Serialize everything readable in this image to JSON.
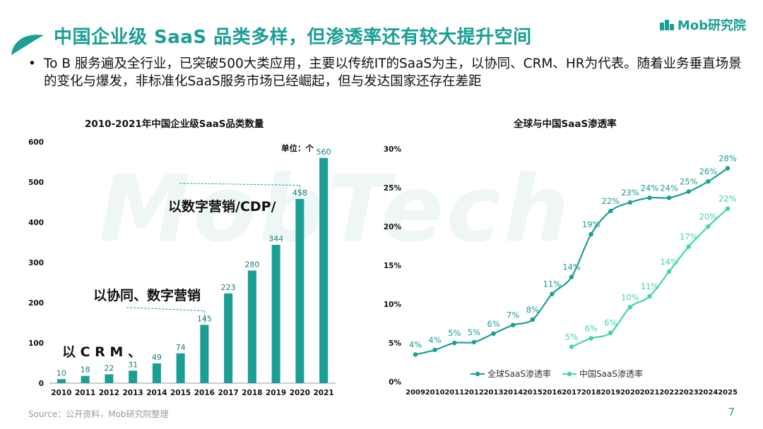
{
  "header": {
    "title": "中国企业级 SaaS 品类多样，但渗透率还有较大提升空间",
    "logo_text": "Mob研究院",
    "accent": "#1a9e95"
  },
  "bullet": {
    "dot": "•",
    "text": "To B 服务遍及全行业，已突破500大类应用，主要以传统IT的SaaS为主，以协同、CRM、HR为代表。随着业务垂直场景的变化与爆发，非标准化SaaS服务市场已经崛起，但与发达国家还存在差距"
  },
  "watermark": "MobTech",
  "footer": {
    "source": "Source：公开资料，Mob研究院整理",
    "page": "7"
  },
  "chart_data": [
    {
      "type": "bar",
      "title": "2010-2021年中国企业级SaaS品类数量",
      "unit_label": "单位：个",
      "categories": [
        "2010",
        "2011",
        "2012",
        "2013",
        "2014",
        "2015",
        "2016",
        "2017",
        "2018",
        "2019",
        "2020",
        "2021"
      ],
      "values": [
        10,
        18,
        22,
        31,
        49,
        74,
        145,
        223,
        280,
        344,
        458,
        560
      ],
      "ylim": [
        0,
        600
      ],
      "yticks": [
        0,
        100,
        200,
        300,
        400,
        500,
        600
      ],
      "color": "#1a9e95",
      "annotations": [
        "以 C R M 、",
        "以协同、数字营销",
        "以数字营销/CDP/"
      ],
      "grid": false
    },
    {
      "type": "line",
      "title": "全球与中国SaaS渗透率",
      "x": [
        "2009",
        "2010",
        "2011",
        "2012",
        "2013",
        "2014",
        "2015",
        "2016",
        "2017",
        "2018",
        "2019",
        "2020",
        "2021",
        "2022",
        "2023",
        "2024",
        "2025"
      ],
      "ylim": [
        0,
        30
      ],
      "yticks": [
        "0%",
        "5%",
        "10%",
        "15%",
        "20%",
        "25%",
        "30%"
      ],
      "legend_position": "bottom",
      "grid": false,
      "series": [
        {
          "name": "全球SaaS渗透率",
          "color": "#1a9e95",
          "x": [
            "2009",
            "2010",
            "2011",
            "2012",
            "2013",
            "2014",
            "2015",
            "2016",
            "2017",
            "2018",
            "2019",
            "2020",
            "2021",
            "2022",
            "2023",
            "2024",
            "2025"
          ],
          "values": [
            3.5,
            4.1,
            5.0,
            5.1,
            6.2,
            7.3,
            8.0,
            11.3,
            13.5,
            19.0,
            22.0,
            23.1,
            23.7,
            23.7,
            24.5,
            25.8,
            27.5
          ],
          "labels": [
            "4%",
            "4%",
            "5%",
            "5%",
            "6%",
            "7%",
            "8%",
            "11%",
            "14%",
            "19%",
            "22%",
            "23%",
            "24%",
            "24%",
            "25%",
            "26%",
            "28%"
          ]
        },
        {
          "name": "中国SaaS渗透率",
          "color": "#3fd6a8",
          "x": [
            "2017",
            "2018",
            "2019",
            "2020",
            "2021",
            "2022",
            "2023",
            "2024",
            "2025"
          ],
          "values": [
            4.5,
            5.6,
            6.3,
            9.6,
            11.0,
            14.2,
            17.4,
            20.0,
            22.3
          ],
          "labels": [
            "5%",
            "6%",
            "6%",
            "10%",
            "11%",
            "14%",
            "17%",
            "20%",
            "22%"
          ]
        }
      ]
    }
  ]
}
